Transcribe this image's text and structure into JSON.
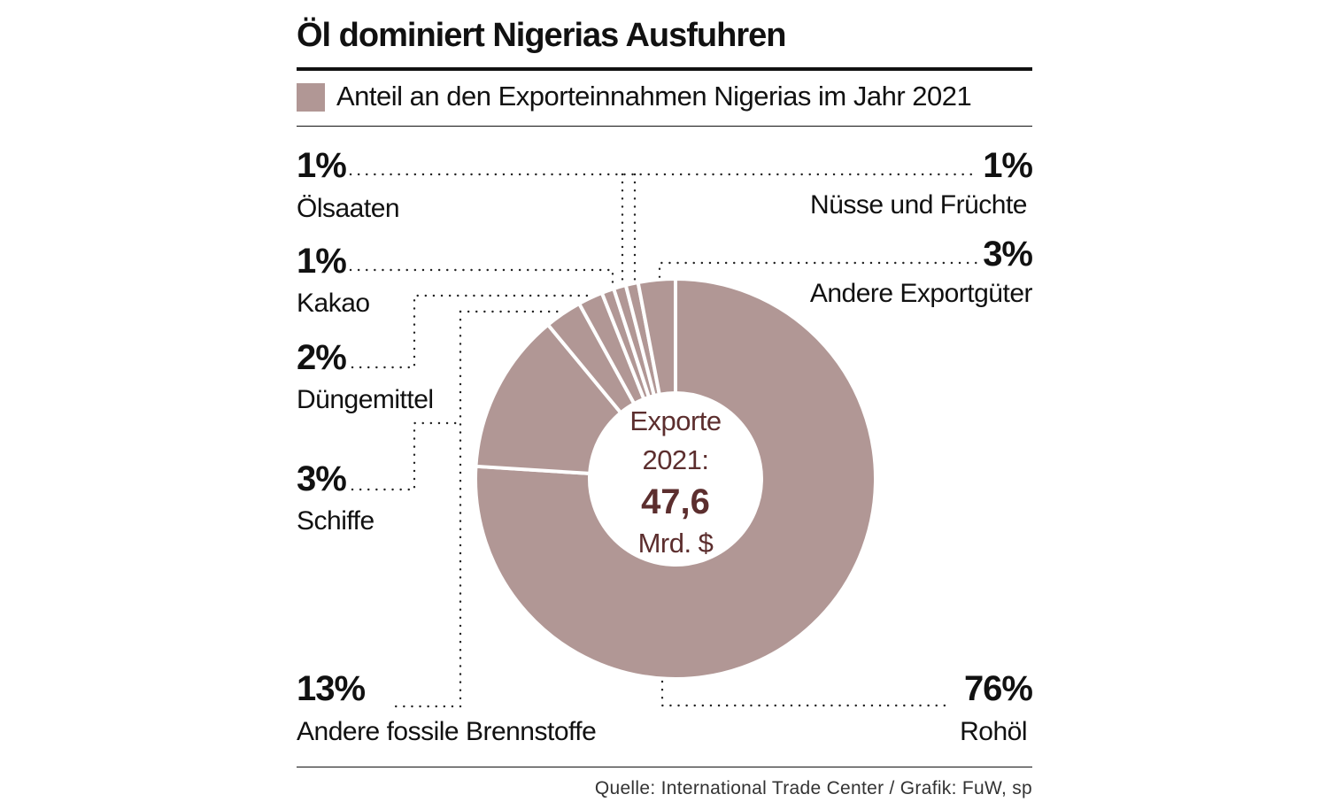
{
  "title": "Öl dominiert Nigerias Ausfuhren",
  "legend": {
    "label": "Anteil an den Exporteinnahmen Nigerias im Jahr 2021",
    "color": "#b19795"
  },
  "source": "Quelle: International Trade Center / Grafik: FuW, sp",
  "center": {
    "line1": "Exporte",
    "line2": "2021:",
    "value": "47,6",
    "unit": "Mrd. $",
    "color": "#5c2e2e"
  },
  "chart_data": {
    "type": "pie",
    "variant": "donut",
    "title": "Öl dominiert Nigerias Ausfuhren",
    "subtitle": "Anteil an den Exporteinnahmen Nigerias im Jahr 2021",
    "unit": "%",
    "total": "47,6 Mrd. $",
    "slices": [
      {
        "name": "Rohöl",
        "value": 76,
        "label": "76%"
      },
      {
        "name": "Andere fossile Brennstoffe",
        "value": 13,
        "label": "13%"
      },
      {
        "name": "Schiffe",
        "value": 3,
        "label": "3%"
      },
      {
        "name": "Düngemittel",
        "value": 2,
        "label": "2%"
      },
      {
        "name": "Kakao",
        "value": 1,
        "label": "1%"
      },
      {
        "name": "Ölsaaten",
        "value": 1,
        "label": "1%"
      },
      {
        "name": "Nüsse und Früchte",
        "value": 1,
        "label": "1%"
      },
      {
        "name": "Andere Exportgüter",
        "value": 3,
        "label": "3%"
      }
    ]
  }
}
